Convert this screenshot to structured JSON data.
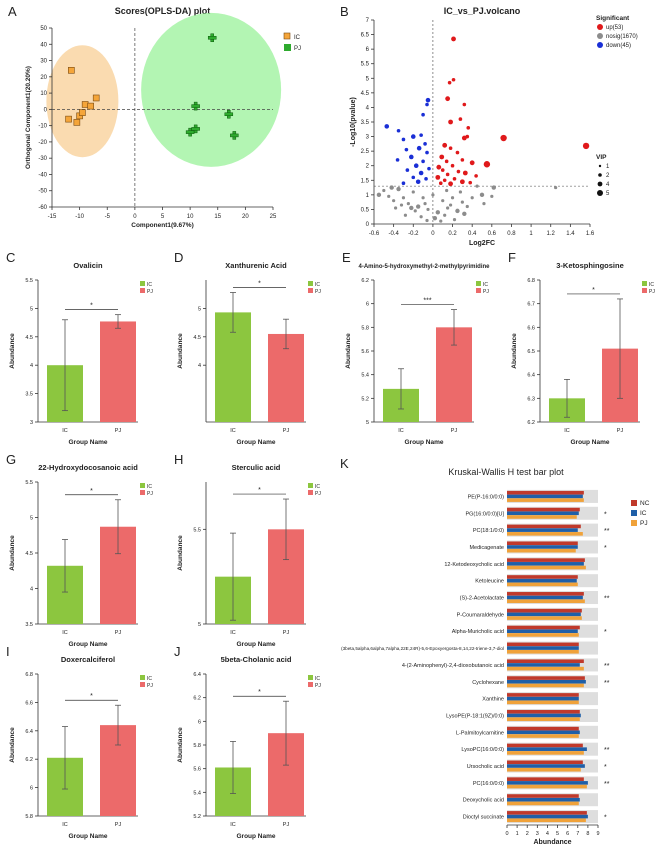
{
  "panels": {
    "A": {
      "letter": "A",
      "chart_data": {
        "type": "scatter",
        "title": "Scores(OPLS-DA) plot",
        "xlabel": "Component1(9.67%)",
        "ylabel": "Orthogonal Component1(20.20%)",
        "xlim": [
          -15,
          25
        ],
        "ylim": [
          -60,
          50
        ],
        "xticks": [
          -15,
          -10,
          -5,
          0,
          5,
          10,
          15,
          20,
          25
        ],
        "yticks": [
          -60,
          -50,
          -40,
          -30,
          -20,
          -10,
          0,
          10,
          20,
          30,
          40,
          50
        ],
        "series": [
          {
            "name": "IC",
            "color": "#f4a53a",
            "points": [
              [
                -11.5,
                24
              ],
              [
                -10,
                -4
              ],
              [
                -9.5,
                -2
              ],
              [
                -9,
                3
              ],
              [
                -12,
                -6
              ],
              [
                -8,
                2
              ],
              [
                -7,
                7
              ],
              [
                -10.5,
                -8
              ]
            ]
          },
          {
            "name": "PJ",
            "color": "#2eaa2e",
            "points": [
              [
                14,
                44
              ],
              [
                11,
                2
              ],
              [
                17,
                -3
              ],
              [
                18,
                -16
              ],
              [
                10,
                -14
              ],
              [
                11,
                -12
              ]
            ]
          }
        ],
        "legend": [
          "IC",
          "PJ"
        ]
      }
    },
    "B": {
      "letter": "B",
      "chart_data": {
        "type": "scatter",
        "title": "IC_vs_PJ.volcano",
        "xlabel": "Log2FC",
        "ylabel": "-Log10(pvalue)",
        "xlim": [
          -0.6,
          1.6
        ],
        "ylim": [
          0,
          7
        ],
        "xticks": [
          -0.6,
          -0.4,
          -0.2,
          0,
          0.2,
          0.4,
          0.6,
          0.8,
          1,
          1.2,
          1.4,
          1.6
        ],
        "yticks": [
          0,
          0.5,
          1,
          1.5,
          2,
          2.5,
          3,
          3.5,
          4,
          4.5,
          5,
          5.5,
          6,
          6.5,
          7
        ],
        "threshold_y": 1.3,
        "legend_title": "Significant",
        "legend": [
          {
            "label": "up(53)",
            "color": "#e0191b"
          },
          {
            "label": "nosig(1670)",
            "color": "#8c8c8c"
          },
          {
            "label": "down(45)",
            "color": "#1a2fd6"
          }
        ],
        "vip_title": "VIP",
        "vip_levels": [
          "1",
          "2",
          "4",
          "5"
        ],
        "up_points": [
          [
            0.21,
            6.35
          ],
          [
            0.21,
            4.95
          ],
          [
            0.17,
            4.85
          ],
          [
            0.15,
            4.3
          ],
          [
            0.32,
            4.1
          ],
          [
            0.28,
            3.6
          ],
          [
            0.18,
            3.5
          ],
          [
            0.36,
            3.3
          ],
          [
            0.35,
            3.0
          ],
          [
            0.32,
            2.95
          ],
          [
            0.72,
            2.95
          ],
          [
            1.56,
            2.68
          ],
          [
            0.12,
            2.7
          ],
          [
            0.18,
            2.6
          ],
          [
            0.25,
            2.45
          ],
          [
            0.09,
            2.3
          ],
          [
            0.3,
            2.2
          ],
          [
            0.14,
            2.15
          ],
          [
            0.4,
            2.1
          ],
          [
            0.55,
            2.05
          ],
          [
            0.2,
            2.0
          ],
          [
            0.06,
            1.95
          ],
          [
            0.1,
            1.85
          ],
          [
            0.26,
            1.8
          ],
          [
            0.33,
            1.75
          ],
          [
            0.15,
            1.7
          ],
          [
            0.44,
            1.65
          ],
          [
            0.05,
            1.6
          ],
          [
            0.22,
            1.55
          ],
          [
            0.12,
            1.5
          ],
          [
            0.3,
            1.45
          ],
          [
            0.38,
            1.42
          ],
          [
            0.08,
            1.4
          ],
          [
            0.18,
            1.38
          ]
        ],
        "down_points": [
          [
            -0.05,
            4.25
          ],
          [
            -0.06,
            4.1
          ],
          [
            -0.1,
            3.75
          ],
          [
            -0.47,
            3.35
          ],
          [
            -0.35,
            3.2
          ],
          [
            -0.12,
            3.05
          ],
          [
            -0.2,
            3.0
          ],
          [
            -0.3,
            2.9
          ],
          [
            -0.08,
            2.75
          ],
          [
            -0.14,
            2.6
          ],
          [
            -0.27,
            2.55
          ],
          [
            -0.06,
            2.45
          ],
          [
            -0.22,
            2.3
          ],
          [
            -0.36,
            2.2
          ],
          [
            -0.1,
            2.15
          ],
          [
            -0.17,
            2.0
          ],
          [
            -0.04,
            1.9
          ],
          [
            -0.26,
            1.85
          ],
          [
            -0.12,
            1.75
          ],
          [
            -0.2,
            1.6
          ],
          [
            -0.07,
            1.55
          ],
          [
            -0.15,
            1.45
          ],
          [
            -0.3,
            1.4
          ]
        ],
        "gray_points": [
          [
            -0.55,
            1.0
          ],
          [
            -0.5,
            1.15
          ],
          [
            -0.45,
            0.95
          ],
          [
            -0.4,
            0.8
          ],
          [
            -0.35,
            1.2
          ],
          [
            -0.3,
            0.9
          ],
          [
            -0.25,
            0.7
          ],
          [
            -0.2,
            1.1
          ],
          [
            -0.15,
            0.6
          ],
          [
            -0.1,
            0.9
          ],
          [
            -0.05,
            0.5
          ],
          [
            0.0,
            1.0
          ],
          [
            0.05,
            0.4
          ],
          [
            0.1,
            0.8
          ],
          [
            0.15,
            0.55
          ],
          [
            0.2,
            0.9
          ],
          [
            0.25,
            0.45
          ],
          [
            0.3,
            0.75
          ],
          [
            0.35,
            0.6
          ],
          [
            0.4,
            0.9
          ],
          [
            0.5,
            1.0
          ],
          [
            0.6,
            0.95
          ],
          [
            -0.28,
            0.3
          ],
          [
            -0.12,
            0.25
          ],
          [
            0.02,
            0.2
          ],
          [
            0.12,
            0.3
          ],
          [
            0.22,
            0.15
          ],
          [
            -0.18,
            0.45
          ],
          [
            0.32,
            0.35
          ],
          [
            -0.38,
            0.55
          ],
          [
            1.25,
            1.25
          ],
          [
            0.45,
            1.3
          ],
          [
            -0.42,
            1.25
          ],
          [
            0.08,
            0.1
          ],
          [
            -0.06,
            0.12
          ],
          [
            0.18,
            0.65
          ],
          [
            -0.22,
            0.55
          ],
          [
            0.28,
            1.1
          ],
          [
            -0.32,
            0.65
          ],
          [
            0.52,
            0.7
          ],
          [
            0.62,
            1.25
          ],
          [
            -0.08,
            0.7
          ],
          [
            0.14,
            1.15
          ]
        ]
      }
    },
    "bars": [
      {
        "letter": "C",
        "chart_data": {
          "type": "bar",
          "title": "Ovalicin",
          "categories": [
            "IC",
            "PJ"
          ],
          "values": [
            4.0,
            4.77
          ],
          "errors": [
            0.8,
            0.12
          ],
          "ylim": [
            3,
            5.5
          ],
          "yticks": [
            3,
            3.5,
            4,
            4.5,
            5,
            5.5
          ],
          "ylabel": "Abundance",
          "xlabel": "Group Name",
          "sig": "*",
          "legend": [
            "IC",
            "PJ"
          ]
        }
      },
      {
        "letter": "D",
        "chart_data": {
          "type": "bar",
          "title": "Xanthurenic Acid",
          "categories": [
            "IC",
            "PJ"
          ],
          "values": [
            4.93,
            4.55
          ],
          "errors": [
            0.35,
            0.26
          ],
          "ylim": [
            3,
            5.5
          ],
          "yticks": [
            4,
            4.5,
            5
          ],
          "ylabel": "Abundance",
          "xlabel": "Group Name",
          "sig": "*",
          "legend": [
            "IC",
            "PJ"
          ]
        }
      },
      {
        "letter": "E",
        "chart_data": {
          "type": "bar",
          "title": "4-Amino-5-hydroxymethyl-2-methylpyrimidine",
          "categories": [
            "IC",
            "PJ"
          ],
          "values": [
            5.28,
            5.8
          ],
          "errors": [
            0.17,
            0.15
          ],
          "ylim": [
            5,
            6.2
          ],
          "yticks": [
            5,
            5.2,
            5.4,
            5.6,
            5.8,
            6,
            6.2
          ],
          "ylabel": "Abundance",
          "xlabel": "Group Name",
          "sig": "***",
          "legend": [
            "IC",
            "PJ"
          ]
        }
      },
      {
        "letter": "F",
        "chart_data": {
          "type": "bar",
          "title": "3-Ketosphingosine",
          "categories": [
            "IC",
            "PJ"
          ],
          "values": [
            6.3,
            6.51
          ],
          "errors": [
            0.08,
            0.21
          ],
          "ylim": [
            6.2,
            6.8
          ],
          "yticks": [
            6.2,
            6.3,
            6.4,
            6.5,
            6.6,
            6.7,
            6.8
          ],
          "ylabel": "Abundance",
          "xlabel": "Group Name",
          "sig": "*",
          "legend": [
            "IC",
            "PJ"
          ]
        }
      },
      {
        "letter": "G",
        "chart_data": {
          "type": "bar",
          "title": "22-Hydroxydocosanoic acid",
          "categories": [
            "IC",
            "PJ"
          ],
          "values": [
            4.32,
            4.87
          ],
          "errors": [
            0.37,
            0.38
          ],
          "ylim": [
            3.5,
            5.5
          ],
          "yticks": [
            3.5,
            4,
            4.5,
            5,
            5.5
          ],
          "ylabel": "Abundance",
          "xlabel": "Group Name",
          "sig": "*",
          "legend": [
            "IC",
            "PJ"
          ]
        }
      },
      {
        "letter": "H",
        "chart_data": {
          "type": "bar",
          "title": "Sterculic acid",
          "categories": [
            "IC",
            "PJ"
          ],
          "values": [
            5.25,
            5.5
          ],
          "errors": [
            0.23,
            0.16
          ],
          "ylim": [
            5,
            5.75
          ],
          "yticks": [
            5,
            5.5
          ],
          "ylabel": "Abundance",
          "xlabel": "Group Name",
          "sig": "*",
          "legend": [
            "IC",
            "PJ"
          ]
        }
      },
      {
        "letter": "I",
        "chart_data": {
          "type": "bar",
          "title": "Doxercalciferol",
          "categories": [
            "IC",
            "PJ"
          ],
          "values": [
            6.21,
            6.44
          ],
          "errors": [
            0.22,
            0.14
          ],
          "ylim": [
            5.8,
            6.8
          ],
          "yticks": [
            5.8,
            6,
            6.2,
            6.4,
            6.6,
            6.8
          ],
          "ylabel": "Abundance",
          "xlabel": "Group Name",
          "sig": "*",
          "legend": [
            "IC",
            "PJ"
          ]
        }
      },
      {
        "letter": "J",
        "chart_data": {
          "type": "bar",
          "title": "5beta-Cholanic acid",
          "categories": [
            "IC",
            "PJ"
          ],
          "values": [
            5.61,
            5.9
          ],
          "errors": [
            0.22,
            0.27
          ],
          "ylim": [
            5.2,
            6.4
          ],
          "yticks": [
            5.2,
            5.4,
            5.6,
            5.8,
            6,
            6.2,
            6.4
          ],
          "ylabel": "Abundance",
          "xlabel": "Group Name",
          "sig": "*",
          "legend": [
            "IC",
            "PJ"
          ]
        }
      }
    ],
    "K": {
      "letter": "K",
      "chart_data": {
        "type": "bar",
        "orientation": "horizontal",
        "title": "Kruskal-Wallis H test bar plot",
        "xlabel": "Abundance",
        "xlim": [
          0,
          9
        ],
        "xticks": [
          0,
          1,
          2,
          3,
          4,
          5,
          6,
          7,
          8,
          9
        ],
        "series_names": [
          "NC",
          "IC",
          "PJ"
        ],
        "series_colors": [
          "#c0392b",
          "#1f5fa8",
          "#f0a23a"
        ],
        "categories": [
          "PE(P-16:0/0:0)",
          "PG(16:0/0:0)[U]",
          "PC(18:1/0:0)",
          "Medicagenate",
          "12-Ketodeoxycholic acid",
          "Ketoleucine",
          "(S)-2-Acetolactate",
          "P-Coumaraldehyde",
          "Alpha-Muricholic acid",
          "(3beta,5alpha,6alpha,7alpha,22E,24R)-5,6-Epoxyergosta-8,14,22-triene-3,7-diol",
          "4-(2-Aminophenyl)-2,4-dioxobutanoic acid",
          "Cyclohexane",
          "Xanthine",
          "LysoPE(P-18:1(9Z)/0:0)",
          "L-Palmitoylcarnitine",
          "LysoPC(16:0/0:0)",
          "Ursocholic acid",
          "PC(16:0/0:0)",
          "Deoxycholic acid",
          "Dioctyl succinate"
        ],
        "values": [
          [
            7.6,
            7.5,
            7.6
          ],
          [
            7.2,
            7.1,
            6.9
          ],
          [
            7.3,
            7.0,
            7.5
          ],
          [
            7.0,
            7.0,
            6.8
          ],
          [
            7.7,
            7.6,
            7.8
          ],
          [
            7.0,
            6.9,
            7.0
          ],
          [
            7.6,
            7.5,
            7.7
          ],
          [
            7.4,
            7.3,
            7.4
          ],
          [
            7.2,
            7.0,
            7.1
          ],
          [
            7.1,
            7.1,
            7.1
          ],
          [
            7.6,
            7.2,
            7.6
          ],
          [
            7.7,
            7.8,
            7.6
          ],
          [
            7.1,
            7.1,
            7.1
          ],
          [
            7.2,
            7.3,
            7.2
          ],
          [
            7.1,
            7.2,
            7.1
          ],
          [
            7.5,
            7.9,
            7.6
          ],
          [
            7.5,
            7.7,
            7.3
          ],
          [
            7.6,
            8.0,
            7.9
          ],
          [
            7.1,
            7.2,
            7.1
          ],
          [
            7.9,
            8.0,
            7.8
          ]
        ],
        "sig": [
          "",
          "*",
          "**",
          "*",
          "",
          "",
          "**",
          "",
          "*",
          "",
          "**",
          "**",
          "",
          "",
          "",
          "**",
          "*",
          "**",
          "",
          "*"
        ]
      }
    }
  }
}
